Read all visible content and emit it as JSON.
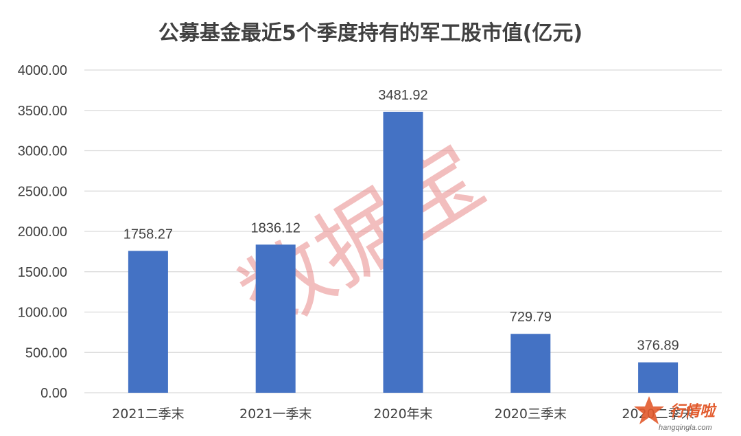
{
  "chart_data": {
    "type": "bar",
    "title": "公募基金最近5个季度持有的军工股市值(亿元)",
    "categories": [
      "2021二季末",
      "2021一季末",
      "2020年末",
      "2020三季末",
      "2020二季末"
    ],
    "values": [
      1758.27,
      1836.12,
      3481.92,
      729.79,
      376.89
    ],
    "value_labels": [
      "1758.27",
      "1836.12",
      "3481.92",
      "729.79",
      "376.89"
    ],
    "y_ticks": [
      "0.00",
      "500.00",
      "1000.00",
      "1500.00",
      "2000.00",
      "2500.00",
      "3000.00",
      "3500.00",
      "4000.00"
    ],
    "ylim": [
      0,
      4000
    ],
    "grid": true,
    "bar_color": "#4472c4",
    "xlabel": "",
    "ylabel": ""
  },
  "watermark": {
    "text": "数据宝",
    "color": "#e98a8a"
  },
  "brand": {
    "name": "行情啦",
    "url": "hangqingla.com",
    "color": "#e25a2c"
  }
}
